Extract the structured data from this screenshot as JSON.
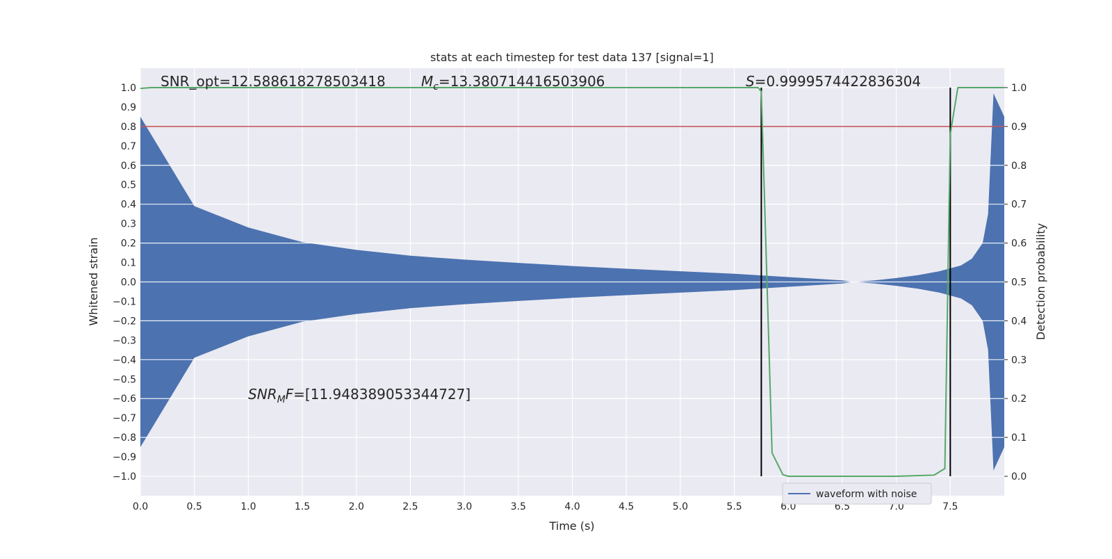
{
  "chart_data": {
    "type": "line",
    "title": "stats at each timestep for test data 137 [signal=1]",
    "xlabel": "Time (s)",
    "ylabel_left": "Whitened strain",
    "ylabel_right": "Detection probability",
    "xlim": [
      0.0,
      8.0
    ],
    "ylim_left": [
      -1.1,
      1.1
    ],
    "ylim_right": [
      -0.05,
      1.05
    ],
    "xticks": [
      "0.0",
      "0.5",
      "1.0",
      "1.5",
      "2.0",
      "2.5",
      "3.0",
      "3.5",
      "4.0",
      "4.5",
      "5.0",
      "5.5",
      "6.0",
      "6.5",
      "7.0",
      "7.5"
    ],
    "yticks_left": [
      "1.0",
      "0.9",
      "0.8",
      "0.7",
      "0.6",
      "0.5",
      "0.4",
      "0.3",
      "0.2",
      "0.1",
      "0.0",
      "−0.1",
      "−0.2",
      "−0.3",
      "−0.4",
      "−0.5",
      "−0.6",
      "−0.7",
      "−0.8",
      "−0.9",
      "−1.0"
    ],
    "yticks_right": [
      "1.0",
      "0.9",
      "0.8",
      "0.7",
      "0.6",
      "0.5",
      "0.4",
      "0.3",
      "0.2",
      "0.1",
      "0.0"
    ],
    "grid": true,
    "legend": {
      "placement": "lower-right",
      "entries": [
        "waveform with noise"
      ]
    },
    "waveform": {
      "name": "waveform with noise",
      "color": "#4c72b0",
      "envelope_t": [
        0.0,
        0.5,
        1.0,
        1.5,
        2.0,
        2.5,
        3.0,
        3.5,
        4.0,
        4.5,
        5.0,
        5.5,
        6.0,
        6.5,
        6.6,
        6.8,
        7.0,
        7.2,
        7.4,
        7.6,
        7.7,
        7.8,
        7.85,
        7.9,
        8.0
      ],
      "envelope_amp": [
        0.85,
        0.39,
        0.28,
        0.205,
        0.165,
        0.135,
        0.115,
        0.098,
        0.082,
        0.068,
        0.055,
        0.042,
        0.025,
        0.008,
        0.0,
        0.008,
        0.02,
        0.035,
        0.055,
        0.085,
        0.12,
        0.2,
        0.35,
        0.97,
        0.85
      ]
    },
    "probability": {
      "color": "#55a868",
      "x": [
        0.0,
        0.1,
        5.72,
        5.75,
        5.85,
        5.95,
        6.0,
        6.5,
        7.0,
        7.35,
        7.45,
        7.5,
        7.57,
        7.65,
        8.0
      ],
      "y": [
        0.998,
        1.0,
        1.0,
        0.99,
        0.06,
        0.004,
        0.0,
        0.0,
        0.0,
        0.003,
        0.02,
        0.88,
        1.0,
        1.0,
        1.0
      ]
    },
    "threshold": {
      "color": "#c44e52",
      "y_right": 0.9
    },
    "vlines": {
      "color": "#000000",
      "x": [
        5.75,
        7.5
      ],
      "y_right_range": [
        0.0,
        1.0
      ]
    },
    "annotations": {
      "snr_opt": "SNR_opt=12.588618278503418",
      "mc_symbol": "M",
      "mc_sub": "c",
      "mc_value": "=13.380714416503906",
      "s_symbol": "S",
      "s_value": "=0.9999574422836304",
      "snrmf_symbol": "SNR",
      "snrmf_sub": "M",
      "snrmf_tail": "F",
      "snrmf_value": "=[11.948389053344727]"
    }
  }
}
